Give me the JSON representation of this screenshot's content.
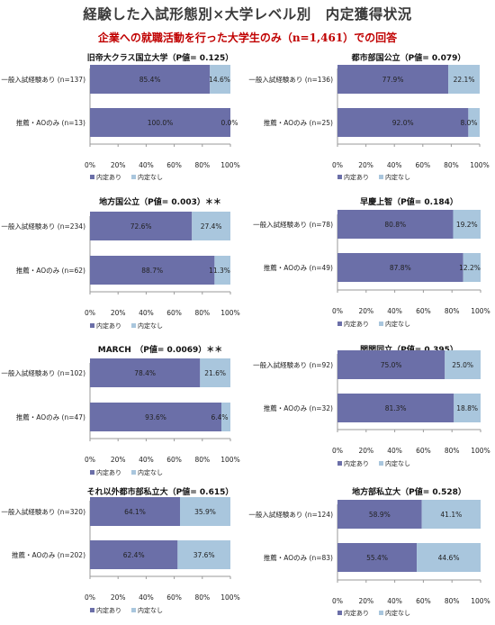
{
  "page": {
    "title": "経験した入試形態別×大学レベル別　内定獲得状況",
    "subtitle": "企業への就職活動を行った大学生のみ（n=1,461）での回答"
  },
  "colors": {
    "naitei_ari": "#6b6fa8",
    "naitei_nashi": "#a9c6dd",
    "axis": "#9a9a9a"
  },
  "chart_data": [
    {
      "type": "bar",
      "orientation": "horizontal",
      "stacked": "percent",
      "title": "旧帝大クラス国立大学（P値= 0.125）",
      "categories": [
        "一般入試経験あり (n=137)",
        "推薦・AOのみ (n=13)"
      ],
      "series": [
        {
          "name": "内定あり",
          "values": [
            85.4,
            100.0
          ]
        },
        {
          "name": "内定なし",
          "values": [
            14.6,
            0.0
          ]
        }
      ],
      "xticks": [
        "0%",
        "20%",
        "40%",
        "60%",
        "80%",
        "100%"
      ],
      "xlim": [
        0,
        100
      ],
      "legend": "bottom-left"
    },
    {
      "type": "bar",
      "orientation": "horizontal",
      "stacked": "percent",
      "title": "都市部国公立（P値= 0.079）",
      "categories": [
        "一般入試経験あり (n=136)",
        "推薦・AOのみ (n=25)"
      ],
      "series": [
        {
          "name": "内定あり",
          "values": [
            77.9,
            92.0
          ]
        },
        {
          "name": "内定なし",
          "values": [
            22.1,
            8.0
          ]
        }
      ],
      "xticks": [
        "0%",
        "20%",
        "40%",
        "60%",
        "80%",
        "100%"
      ],
      "xlim": [
        0,
        100
      ],
      "legend": "bottom-left"
    },
    {
      "type": "bar",
      "orientation": "horizontal",
      "stacked": "percent",
      "title": "地方国公立（P値= 0.003）＊＊",
      "categories": [
        "一般入試経験あり (n=234)",
        "推薦・AOのみ (n=62)"
      ],
      "series": [
        {
          "name": "内定あり",
          "values": [
            72.6,
            88.7
          ]
        },
        {
          "name": "内定なし",
          "values": [
            27.4,
            11.3
          ]
        }
      ],
      "xticks": [
        "0%",
        "20%",
        "40%",
        "60%",
        "80%",
        "100%"
      ],
      "xlim": [
        0,
        100
      ],
      "legend": "bottom-left"
    },
    {
      "type": "bar",
      "orientation": "horizontal",
      "stacked": "percent",
      "title": "早慶上智（P値= 0.184）",
      "categories": [
        "一般入試経験あり (n=78)",
        "推薦・AOのみ (n=49)"
      ],
      "series": [
        {
          "name": "内定あり",
          "values": [
            80.8,
            87.8
          ]
        },
        {
          "name": "内定なし",
          "values": [
            19.2,
            12.2
          ]
        }
      ],
      "xticks": [
        "0%",
        "20%",
        "40%",
        "60%",
        "80%",
        "100%"
      ],
      "xlim": [
        0,
        100
      ],
      "legend": "bottom-left"
    },
    {
      "type": "bar",
      "orientation": "horizontal",
      "stacked": "percent",
      "title": "MARCH　（P値= 0.0069）＊＊",
      "categories": [
        "一般入試経験あり (n=102)",
        "推薦・AOのみ (n=47)"
      ],
      "series": [
        {
          "name": "内定あり",
          "values": [
            78.4,
            93.6
          ]
        },
        {
          "name": "内定なし",
          "values": [
            21.6,
            6.4
          ]
        }
      ],
      "xticks": [
        "0%",
        "20%",
        "40%",
        "60%",
        "80%",
        "100%"
      ],
      "xlim": [
        0,
        100
      ],
      "legend": "bottom-left"
    },
    {
      "type": "bar",
      "orientation": "horizontal",
      "stacked": "percent",
      "title": "関関同立（P値= 0.395）",
      "categories": [
        "一般入試経験あり (n=92)",
        "推薦・AOのみ (n=32)"
      ],
      "series": [
        {
          "name": "内定あり",
          "values": [
            75.0,
            81.3
          ]
        },
        {
          "name": "内定なし",
          "values": [
            25.0,
            18.8
          ]
        }
      ],
      "xticks": [
        "0%",
        "20%",
        "40%",
        "60%",
        "80%",
        "100%"
      ],
      "xlim": [
        0,
        100
      ],
      "legend": "bottom-left"
    },
    {
      "type": "bar",
      "orientation": "horizontal",
      "stacked": "percent",
      "title": "それ以外都市部私立大（P値= 0.615）",
      "categories": [
        "一般入試経験あり (n=320)",
        "推薦・AOのみ (n=202)"
      ],
      "series": [
        {
          "name": "内定あり",
          "values": [
            64.1,
            62.4
          ]
        },
        {
          "name": "内定なし",
          "values": [
            35.9,
            37.6
          ]
        }
      ],
      "xticks": [
        "0%",
        "20%",
        "40%",
        "60%",
        "80%",
        "100%"
      ],
      "xlim": [
        0,
        100
      ],
      "legend": "bottom-left"
    },
    {
      "type": "bar",
      "orientation": "horizontal",
      "stacked": "percent",
      "title": "地方部私立大（P値= 0.528）",
      "categories": [
        "一般入試経験あり (n=124)",
        "推薦・AOのみ (n=83)"
      ],
      "series": [
        {
          "name": "内定あり",
          "values": [
            58.9,
            55.4
          ]
        },
        {
          "name": "内定なし",
          "values": [
            41.1,
            44.6
          ]
        }
      ],
      "xticks": [
        "0%",
        "20%",
        "40%",
        "60%",
        "80%",
        "100%"
      ],
      "xlim": [
        0,
        100
      ],
      "legend": "bottom-left"
    }
  ]
}
